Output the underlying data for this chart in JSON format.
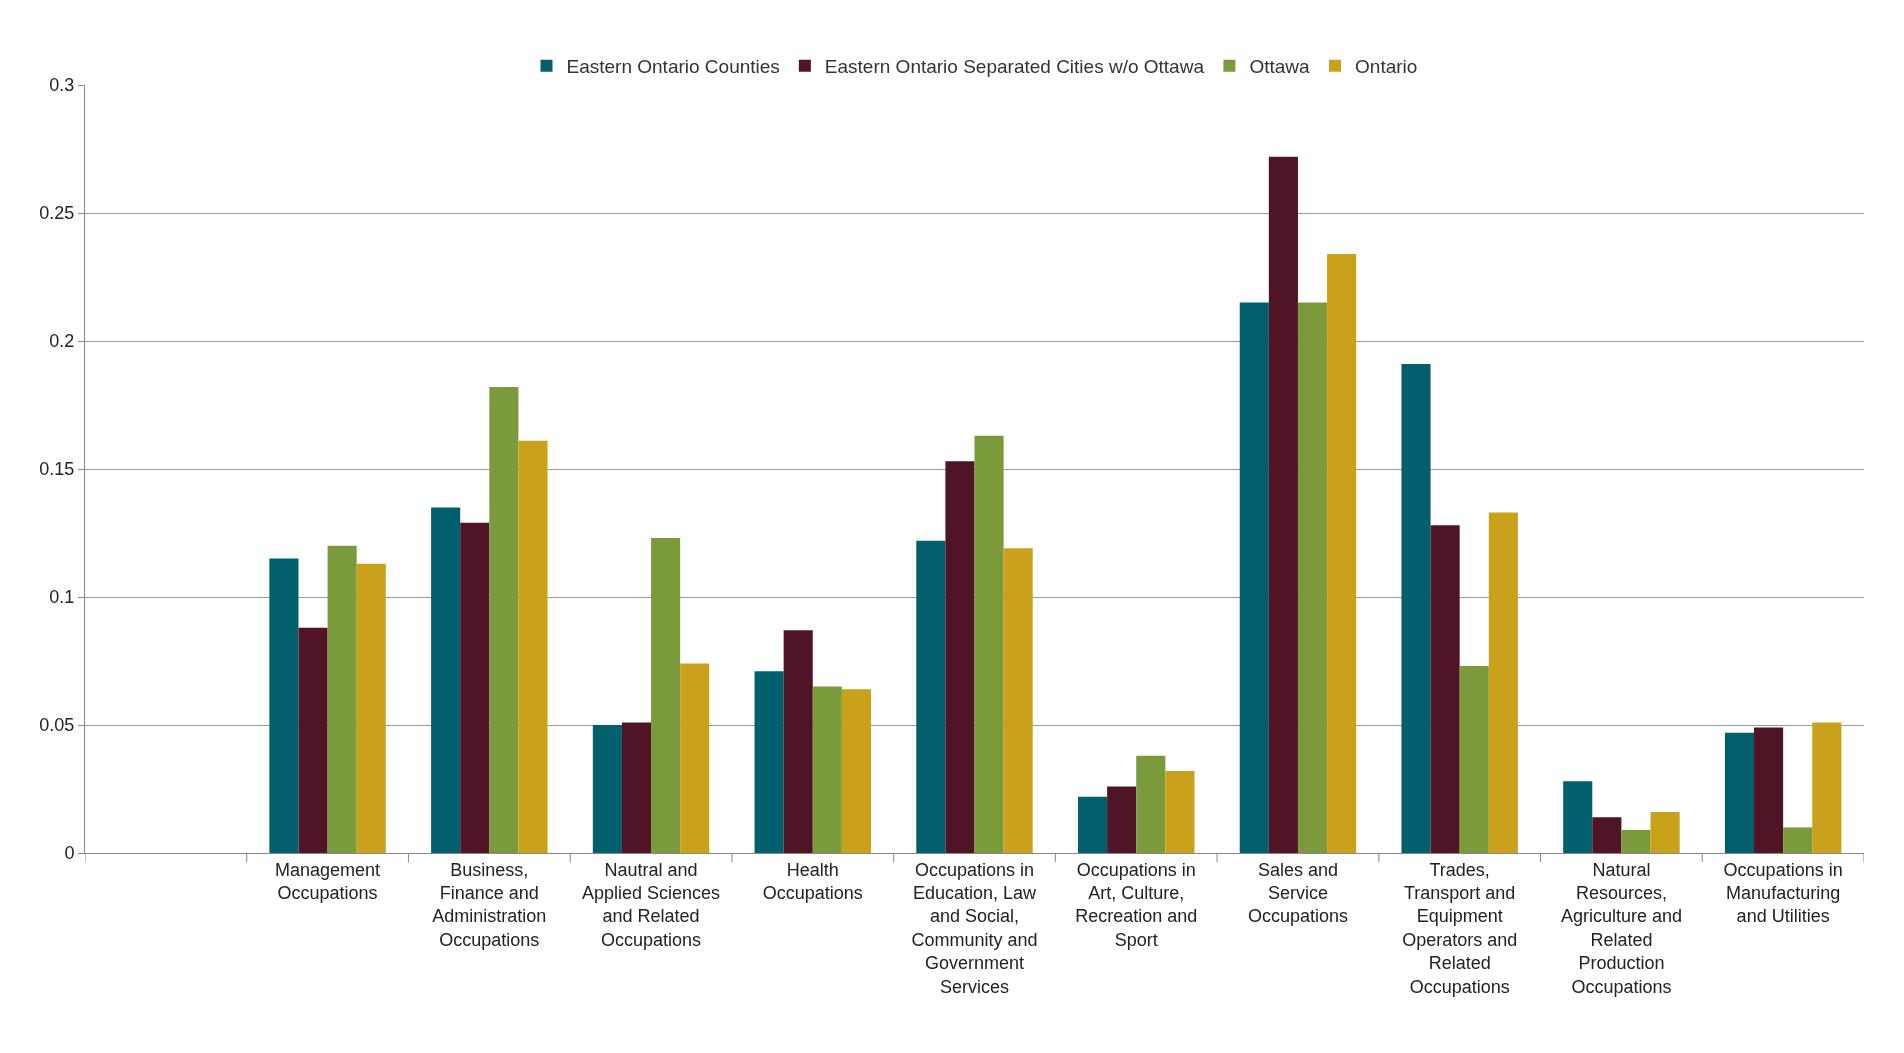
{
  "chart_data": {
    "type": "bar",
    "categories": [
      null,
      "Management Occupations",
      "Business, Finance and Administration Occupations",
      "Nautral and Applied Sciences and Related Occupations",
      "Health Occupations",
      "Occupations in Education, Law and Social, Community and Government Services",
      "Occupations in Art, Culture, Recreation and Sport",
      "Sales and Service Occupations",
      "Trades, Transport and Equipment Operators and Related Occupations",
      "Natural Resources, Agriculture and Related Production Occupations",
      "Occupations in Manufacturing and Utilities"
    ],
    "series": [
      {
        "name": "Eastern Ontario Counties",
        "color": "#025f6d",
        "values": [
          null,
          0.115,
          0.135,
          0.05,
          0.071,
          0.122,
          0.022,
          0.215,
          0.191,
          0.028,
          0.047
        ]
      },
      {
        "name": "Eastern Ontario Separated Cities w/o Ottawa",
        "color": "#4f1426",
        "values": [
          null,
          0.088,
          0.129,
          0.051,
          0.087,
          0.153,
          0.026,
          0.272,
          0.128,
          0.014,
          0.049
        ]
      },
      {
        "name": "Ottawa",
        "color": "#7a9a3c",
        "values": [
          null,
          0.12,
          0.182,
          0.123,
          0.065,
          0.163,
          0.038,
          0.215,
          0.073,
          0.009,
          0.01
        ]
      },
      {
        "name": "Ontario",
        "color": "#c9a11b",
        "values": [
          null,
          0.113,
          0.161,
          0.074,
          0.064,
          0.119,
          0.032,
          0.234,
          0.133,
          0.016,
          0.051
        ]
      }
    ],
    "ylim": [
      0,
      0.3
    ],
    "yticks": [
      0,
      0.05,
      0.1,
      0.15,
      0.2,
      0.25,
      0.3
    ],
    "grid": "y",
    "legend": "top"
  }
}
